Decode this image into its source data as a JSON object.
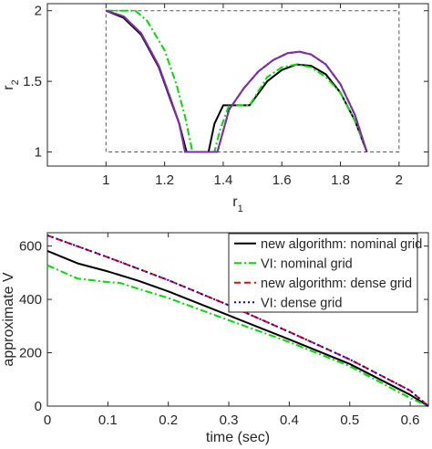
{
  "chart_data": [
    {
      "type": "line",
      "xlabel": "r",
      "xlabel_subscript": "1",
      "ylabel": "r",
      "ylabel_subscript": "2",
      "xlim": [
        0.8,
        2.1
      ],
      "ylim": [
        0.9,
        2.05
      ],
      "xticks": [
        1,
        1.2,
        1.4,
        1.6,
        1.8,
        2
      ],
      "xtick_labels": [
        "1",
        "1.2",
        "1.4",
        "1.6",
        "1.8",
        "2"
      ],
      "yticks": [
        1,
        1.5,
        2
      ],
      "ytick_labels": [
        "1",
        "1.5",
        "2"
      ],
      "grid": false,
      "box": {
        "x": [
          1,
          2
        ],
        "y": [
          1,
          2
        ],
        "style": "dashed"
      },
      "series": [
        {
          "color": "#000000",
          "style": "solid",
          "x": [
            1.0,
            1.06,
            1.12,
            1.18,
            1.22,
            1.25,
            1.275,
            1.35,
            1.37,
            1.4,
            1.49,
            1.55,
            1.6,
            1.65,
            1.7,
            1.75,
            1.8,
            1.85,
            1.89
          ],
          "y": [
            2.0,
            1.95,
            1.83,
            1.6,
            1.37,
            1.2,
            1.0,
            1.0,
            1.2,
            1.33,
            1.33,
            1.5,
            1.58,
            1.62,
            1.61,
            1.55,
            1.42,
            1.22,
            1.0
          ]
        },
        {
          "color": "#00dd00",
          "style": "dashdot",
          "x": [
            1.0,
            1.1,
            1.14,
            1.2,
            1.24,
            1.27,
            1.295,
            1.37,
            1.39,
            1.42,
            1.49,
            1.55,
            1.6,
            1.65,
            1.7,
            1.75,
            1.8,
            1.85,
            1.89
          ],
          "y": [
            2.0,
            2.0,
            1.93,
            1.72,
            1.48,
            1.25,
            1.0,
            1.0,
            1.16,
            1.33,
            1.33,
            1.53,
            1.6,
            1.62,
            1.6,
            1.53,
            1.42,
            1.22,
            1.0
          ]
        },
        {
          "color": "#ff0000",
          "style": "dashed",
          "x": [
            1.0,
            1.06,
            1.12,
            1.18,
            1.22,
            1.25,
            1.27,
            1.38,
            1.42,
            1.47,
            1.52,
            1.57,
            1.62,
            1.66,
            1.7,
            1.75,
            1.8,
            1.85,
            1.89
          ],
          "y": [
            2.0,
            1.96,
            1.84,
            1.61,
            1.38,
            1.2,
            1.0,
            1.0,
            1.3,
            1.45,
            1.57,
            1.65,
            1.7,
            1.71,
            1.69,
            1.62,
            1.48,
            1.26,
            1.0
          ]
        },
        {
          "color": "#0000dd",
          "style": "dotted",
          "x": [
            1.0,
            1.06,
            1.12,
            1.18,
            1.22,
            1.25,
            1.27,
            1.38,
            1.42,
            1.47,
            1.52,
            1.57,
            1.62,
            1.66,
            1.7,
            1.75,
            1.8,
            1.85,
            1.89
          ],
          "y": [
            2.0,
            1.96,
            1.84,
            1.61,
            1.38,
            1.2,
            1.0,
            1.0,
            1.3,
            1.45,
            1.57,
            1.65,
            1.7,
            1.71,
            1.69,
            1.62,
            1.48,
            1.26,
            1.0
          ]
        },
        {
          "color": "#7b2fa8",
          "style": "solid",
          "x": [
            1.0,
            1.06,
            1.12,
            1.18,
            1.22,
            1.25,
            1.27,
            1.38,
            1.42,
            1.47,
            1.52,
            1.57,
            1.62,
            1.66,
            1.7,
            1.75,
            1.8,
            1.85,
            1.89
          ],
          "y": [
            2.0,
            1.96,
            1.84,
            1.61,
            1.38,
            1.2,
            1.0,
            1.0,
            1.3,
            1.45,
            1.57,
            1.65,
            1.7,
            1.71,
            1.69,
            1.62,
            1.48,
            1.26,
            1.0
          ]
        }
      ]
    },
    {
      "type": "line",
      "xlabel": "time (sec)",
      "ylabel": "approximate V",
      "xlim": [
        0,
        0.63
      ],
      "ylim": [
        0,
        650
      ],
      "xticks": [
        0,
        0.1,
        0.2,
        0.3,
        0.4,
        0.5,
        0.6
      ],
      "xtick_labels": [
        "0",
        "0.1",
        "0.2",
        "0.3",
        "0.4",
        "0.5",
        "0.6"
      ],
      "yticks": [
        0,
        200,
        400,
        600
      ],
      "ytick_labels": [
        "0",
        "200",
        "400",
        "600"
      ],
      "grid": false,
      "legend_position": "top-right",
      "series": [
        {
          "name": "new algorithm: nominal grid",
          "color": "#000000",
          "style": "solid",
          "x": [
            0,
            0.05,
            0.1,
            0.15,
            0.2,
            0.3,
            0.4,
            0.5,
            0.6,
            0.63
          ],
          "y": [
            582,
            535,
            505,
            470,
            430,
            340,
            250,
            158,
            42,
            0
          ]
        },
        {
          "name": "VI: nominal grid",
          "color": "#00dd00",
          "style": "dashdot",
          "x": [
            0,
            0.05,
            0.1,
            0.12,
            0.15,
            0.2,
            0.3,
            0.4,
            0.5,
            0.6,
            0.63
          ],
          "y": [
            528,
            478,
            465,
            462,
            440,
            405,
            322,
            240,
            150,
            30,
            0
          ]
        },
        {
          "name": "new algorithm: dense grid",
          "color": "#ff0000",
          "style": "dashed",
          "x": [
            0,
            0.1,
            0.2,
            0.3,
            0.4,
            0.5,
            0.6,
            0.63
          ],
          "y": [
            640,
            558,
            472,
            378,
            278,
            175,
            58,
            0
          ]
        },
        {
          "name": "VI: dense grid",
          "color": "#0000dd",
          "style": "dotted",
          "x": [
            0,
            0.1,
            0.2,
            0.3,
            0.4,
            0.5,
            0.6,
            0.63
          ],
          "y": [
            640,
            558,
            472,
            378,
            278,
            175,
            58,
            0
          ]
        }
      ]
    }
  ]
}
